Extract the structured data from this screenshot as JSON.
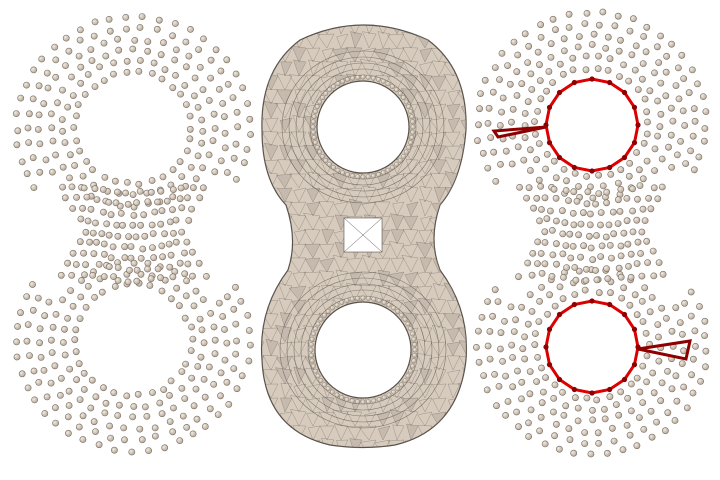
{
  "figure": {
    "panels": [
      {
        "id": "left",
        "content": "point-cloud"
      },
      {
        "id": "middle",
        "content": "triangulated-mesh-double-torus"
      },
      {
        "id": "right",
        "content": "point-cloud-with-loops"
      }
    ]
  },
  "colors": {
    "background": "#ffffff",
    "point_fill": "#c9bcae",
    "point_stroke": "#7a6e62",
    "mesh_fill": "#d6cbbd",
    "mesh_shade": "#a59a8e",
    "mesh_line": "#5a534c",
    "loop": "#dd0000",
    "loop_dark": "#8e0000"
  }
}
